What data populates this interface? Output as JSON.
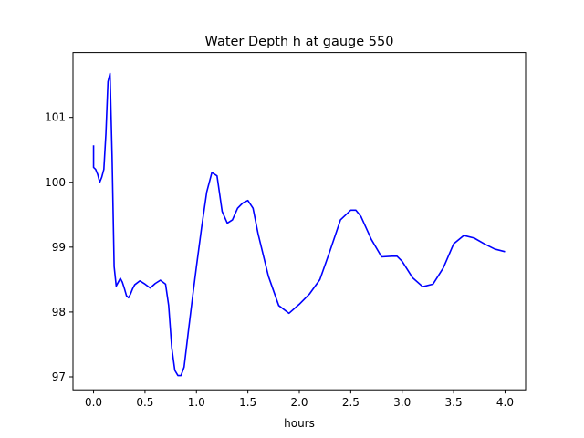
{
  "chart_data": {
    "type": "line",
    "title": "Water Depth h at gauge 550",
    "xlabel": "hours",
    "ylabel": "",
    "xlim": [
      -0.2,
      4.2
    ],
    "ylim": [
      96.8,
      102.0
    ],
    "xticks": [
      0.0,
      0.5,
      1.0,
      1.5,
      2.0,
      2.5,
      3.0,
      3.5,
      4.0
    ],
    "xtick_labels": [
      "0.0",
      "0.5",
      "1.0",
      "1.5",
      "2.0",
      "2.5",
      "3.0",
      "3.5",
      "4.0"
    ],
    "yticks": [
      97,
      98,
      99,
      100,
      101
    ],
    "ytick_labels": [
      "97",
      "98",
      "99",
      "100",
      "101"
    ],
    "grid": false,
    "series": [
      {
        "color": "#0000ff",
        "x": [
          0.0,
          0.0,
          0.02,
          0.04,
          0.06,
          0.08,
          0.1,
          0.12,
          0.14,
          0.16,
          0.18,
          0.2,
          0.22,
          0.24,
          0.26,
          0.28,
          0.3,
          0.32,
          0.34,
          0.36,
          0.38,
          0.4,
          0.45,
          0.5,
          0.55,
          0.6,
          0.65,
          0.7,
          0.73,
          0.76,
          0.79,
          0.82,
          0.85,
          0.88,
          0.92,
          0.96,
          1.0,
          1.05,
          1.1,
          1.15,
          1.2,
          1.25,
          1.3,
          1.35,
          1.4,
          1.45,
          1.5,
          1.55,
          1.6,
          1.7,
          1.8,
          1.9,
          2.0,
          2.1,
          2.2,
          2.3,
          2.4,
          2.5,
          2.55,
          2.6,
          2.7,
          2.8,
          2.9,
          2.95,
          3.0,
          3.1,
          3.2,
          3.3,
          3.4,
          3.5,
          3.6,
          3.7,
          3.8,
          3.9,
          4.0
        ],
        "y": [
          100.57,
          100.23,
          100.2,
          100.12,
          100.0,
          100.08,
          100.2,
          100.75,
          101.55,
          101.68,
          100.4,
          98.7,
          98.4,
          98.46,
          98.52,
          98.46,
          98.36,
          98.25,
          98.22,
          98.28,
          98.36,
          98.42,
          98.48,
          98.43,
          98.37,
          98.44,
          98.49,
          98.43,
          98.1,
          97.45,
          97.1,
          97.02,
          97.02,
          97.15,
          97.68,
          98.2,
          98.7,
          99.3,
          99.85,
          100.15,
          100.1,
          99.55,
          99.37,
          99.42,
          99.6,
          99.68,
          99.72,
          99.6,
          99.2,
          98.55,
          98.1,
          97.98,
          98.12,
          98.28,
          98.5,
          98.95,
          99.42,
          99.57,
          99.57,
          99.47,
          99.12,
          98.85,
          98.86,
          98.86,
          98.78,
          98.53,
          98.39,
          98.43,
          98.68,
          99.05,
          99.18,
          99.14,
          99.05,
          98.97,
          98.93
        ]
      }
    ]
  }
}
